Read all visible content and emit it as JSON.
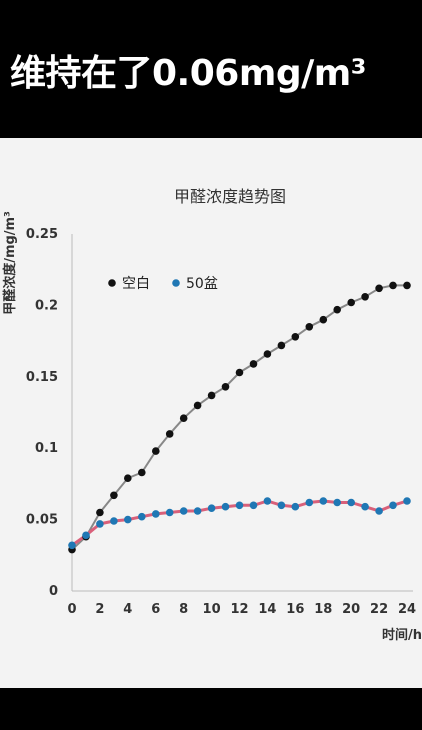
{
  "caption": "维持在了0.06mg/m³",
  "chart_data": {
    "type": "scatter",
    "title": "甲醛浓度趋势图",
    "ylabel": "甲醛浓度/mg/m³",
    "xlabel": "时间/h",
    "xlim": [
      0,
      24
    ],
    "ylim": [
      0,
      0.25
    ],
    "x_ticks": [
      "0",
      "2",
      "4",
      "6",
      "8",
      "10",
      "12",
      "14",
      "16",
      "18",
      "20",
      "22",
      "24"
    ],
    "y_ticks": [
      "0",
      "0.05",
      "0.1",
      "0.15",
      "0.2",
      "0.25"
    ],
    "legend_position": "top-left",
    "grid": false,
    "series": [
      {
        "name": "空白",
        "color": "#111111",
        "line_color": "#888888",
        "x": [
          0,
          1,
          2,
          3,
          4,
          5,
          6,
          7,
          8,
          9,
          10,
          11,
          12,
          13,
          14,
          15,
          16,
          17,
          18,
          19,
          20,
          21,
          22,
          23,
          24
        ],
        "y": [
          0.029,
          0.038,
          0.055,
          0.067,
          0.079,
          0.083,
          0.098,
          0.11,
          0.121,
          0.13,
          0.137,
          0.143,
          0.153,
          0.159,
          0.166,
          0.172,
          0.178,
          0.185,
          0.19,
          0.197,
          0.202,
          0.206,
          0.212,
          0.214,
          0.214
        ]
      },
      {
        "name": "50盆",
        "color": "#1f77b4",
        "line_color": "#d9607a",
        "x": [
          0,
          1,
          2,
          3,
          4,
          5,
          6,
          7,
          8,
          9,
          10,
          11,
          12,
          13,
          14,
          15,
          16,
          17,
          18,
          19,
          20,
          21,
          22,
          23,
          24
        ],
        "y": [
          0.032,
          0.039,
          0.047,
          0.049,
          0.05,
          0.052,
          0.054,
          0.055,
          0.056,
          0.056,
          0.058,
          0.059,
          0.06,
          0.06,
          0.063,
          0.06,
          0.059,
          0.062,
          0.063,
          0.062,
          0.062,
          0.059,
          0.056,
          0.06,
          0.063
        ]
      }
    ]
  }
}
